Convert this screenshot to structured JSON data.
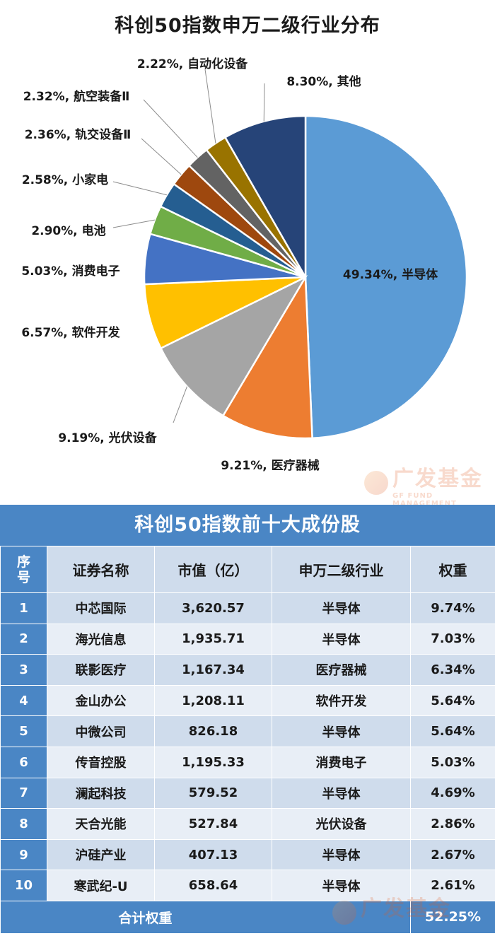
{
  "chart_data": {
    "type": "pie",
    "title": "科创50指数申万二级行业分布",
    "slices": [
      {
        "label": "半导体",
        "value": 49.34,
        "display": "49.34%, 半导体",
        "color": "#5b9bd5"
      },
      {
        "label": "医疗器械",
        "value": 9.21,
        "display": "9.21%, 医疗器械",
        "color": "#ed7d31"
      },
      {
        "label": "光伏设备",
        "value": 9.19,
        "display": "9.19%, 光伏设备",
        "color": "#a5a5a5"
      },
      {
        "label": "软件开发",
        "value": 6.57,
        "display": "6.57%, 软件开发",
        "color": "#ffc000"
      },
      {
        "label": "消费电子",
        "value": 5.03,
        "display": "5.03%, 消费电子",
        "color": "#4472c4"
      },
      {
        "label": "电池",
        "value": 2.9,
        "display": "2.90%, 电池",
        "color": "#70ad47"
      },
      {
        "label": "小家电",
        "value": 2.58,
        "display": "2.58%, 小家电",
        "color": "#255e91"
      },
      {
        "label": "轨交设备Ⅱ",
        "value": 2.36,
        "display": "2.36%, 轨交设备Ⅱ",
        "color": "#9e480e"
      },
      {
        "label": "航空装备Ⅱ",
        "value": 2.32,
        "display": "2.32%, 航空装备Ⅱ",
        "color": "#636363"
      },
      {
        "label": "自动化设备",
        "value": 2.22,
        "display": "2.22%, 自动化设备",
        "color": "#997300"
      },
      {
        "label": "其他",
        "value": 8.3,
        "display": "8.30%, 其他",
        "color": "#264478"
      }
    ]
  },
  "watermark": {
    "brand": "广发基金",
    "sub": "GF FUND MANAGEMENT"
  },
  "table": {
    "title": "科创50指数前十大成份股",
    "headers": {
      "seq": "序号",
      "name": "证券名称",
      "cap": "市值（亿）",
      "industry": "申万二级行业",
      "weight": "权重"
    },
    "rows": [
      {
        "seq": "1",
        "name": "中芯国际",
        "cap": "3,620.57",
        "industry": "半导体",
        "weight": "9.74%"
      },
      {
        "seq": "2",
        "name": "海光信息",
        "cap": "1,935.71",
        "industry": "半导体",
        "weight": "7.03%"
      },
      {
        "seq": "3",
        "name": "联影医疗",
        "cap": "1,167.34",
        "industry": "医疗器械",
        "weight": "6.34%"
      },
      {
        "seq": "4",
        "name": "金山办公",
        "cap": "1,208.11",
        "industry": "软件开发",
        "weight": "5.64%"
      },
      {
        "seq": "5",
        "name": "中微公司",
        "cap": "826.18",
        "industry": "半导体",
        "weight": "5.64%"
      },
      {
        "seq": "6",
        "name": "传音控股",
        "cap": "1,195.33",
        "industry": "消费电子",
        "weight": "5.03%"
      },
      {
        "seq": "7",
        "name": "澜起科技",
        "cap": "579.52",
        "industry": "半导体",
        "weight": "4.69%"
      },
      {
        "seq": "8",
        "name": "天合光能",
        "cap": "527.84",
        "industry": "光伏设备",
        "weight": "2.86%"
      },
      {
        "seq": "9",
        "name": "沪硅产业",
        "cap": "407.13",
        "industry": "半导体",
        "weight": "2.67%"
      },
      {
        "seq": "10",
        "name": "寒武纪-U",
        "cap": "658.64",
        "industry": "半导体",
        "weight": "2.61%"
      }
    ],
    "total": {
      "label": "合计权重",
      "weight": "52.25%"
    }
  }
}
